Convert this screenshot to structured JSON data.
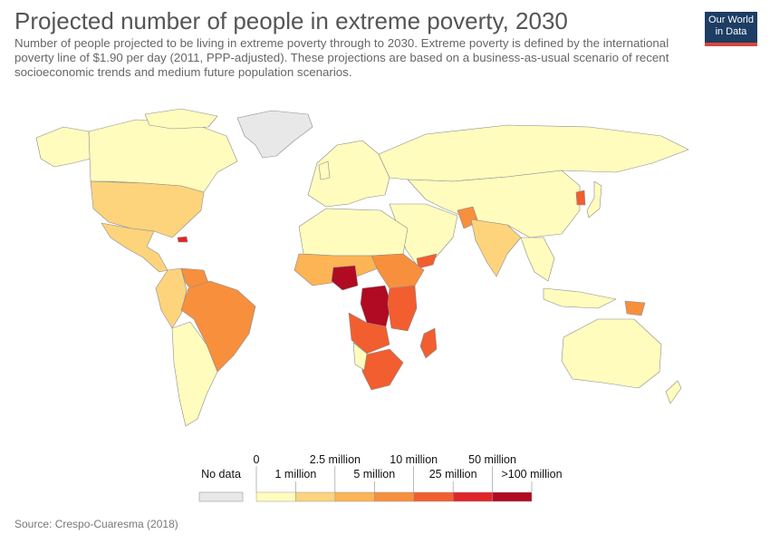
{
  "header": {
    "title": "Projected number of people in extreme poverty, 2030",
    "subtitle": "Number of people projected to be living in extreme poverty through to 2030. Extreme poverty is defined by the international poverty line of $1.90 per day (2011, PPP-adjusted). These projections are based on a business-as-usual scenario of recent socioeconomic trends and medium future population scenarios.",
    "logo_line1": "Our World",
    "logo_line2": "in Data"
  },
  "legend": {
    "no_data_label": "No data",
    "no_data_color": "#e8e8e8",
    "bins": [
      {
        "label": "0",
        "color": "#fffcbe"
      },
      {
        "label": "1 million",
        "color": "#fdd47c"
      },
      {
        "label": "2.5 million",
        "color": "#fdb454"
      },
      {
        "label": "5 million",
        "color": "#f88f3d"
      },
      {
        "label": "10 million",
        "color": "#f25e2f"
      },
      {
        "label": "25 million",
        "color": "#e02528"
      },
      {
        "label": "50 million",
        "color": "#b00b22"
      },
      {
        "label": ">100 million",
        "color": ""
      }
    ]
  },
  "source": "Source: Crespo-Cuaresma (2018)"
}
